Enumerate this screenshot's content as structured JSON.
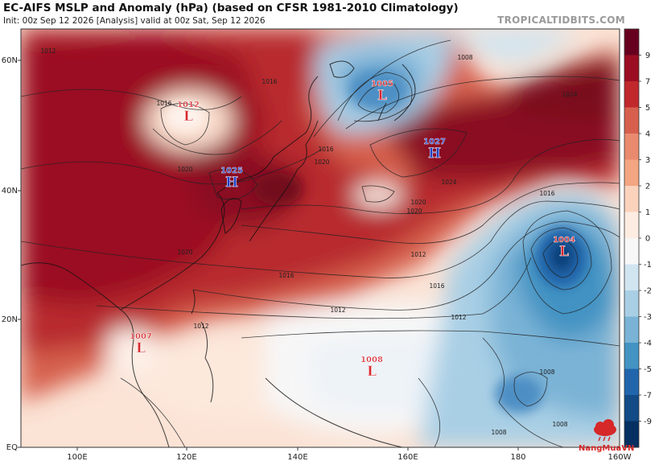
{
  "header": {
    "title": "EC-AIFS MSLP and Anomaly (hPa) (based on CFSR 1981-2010 Climatology)",
    "subtitle": "Init: 00z Sep 12 2026   [Analysis]   valid at 00z Sat, Sep 12 2026",
    "brand": "TROPICALTIDBITS.COM"
  },
  "axes": {
    "lat_labels": [
      "60N",
      "40N",
      "20N",
      "EQ"
    ],
    "lon_labels": [
      "100E",
      "120E",
      "140E",
      "160E",
      "180",
      "160W"
    ]
  },
  "colorbar": {
    "labels": [
      "9",
      "7",
      "5",
      "4",
      "3",
      "2",
      "1",
      "0",
      "-1",
      "-2",
      "-3",
      "-4",
      "-5",
      "-7",
      "-9"
    ],
    "colors": [
      "#67001f",
      "#9b0d22",
      "#c0282c",
      "#d6604d",
      "#e98a6e",
      "#f4a582",
      "#fbd3bd",
      "#fdece2",
      "#f7f7f7",
      "#d1e5f0",
      "#a9cfe5",
      "#7ab3d6",
      "#4393c3",
      "#2166ac",
      "#124b85",
      "#053061"
    ]
  },
  "pressure_centers": [
    {
      "type": "L",
      "value": "1012",
      "color": "#d7282f"
    },
    {
      "type": "L",
      "value": "1005",
      "color": "#d7282f"
    },
    {
      "type": "H",
      "value": "1025",
      "color": "#1f3fc7"
    },
    {
      "type": "H",
      "value": "1027",
      "color": "#1f3fc7"
    },
    {
      "type": "L",
      "value": "1004",
      "color": "#d7282f"
    },
    {
      "type": "L",
      "value": "1007",
      "color": "#d7282f"
    },
    {
      "type": "L",
      "value": "1008",
      "color": "#d7282f"
    }
  ],
  "isobar_labels": [
    "1012",
    "1008",
    "1016",
    "1016",
    "1016",
    "1020",
    "1020",
    "1024",
    "1024",
    "1020",
    "1020",
    "1016",
    "1016",
    "1012",
    "1012",
    "1012",
    "1008",
    "1008",
    "1008",
    "1016",
    "1020",
    "1012"
  ],
  "watermark": "NangMuaVN"
}
